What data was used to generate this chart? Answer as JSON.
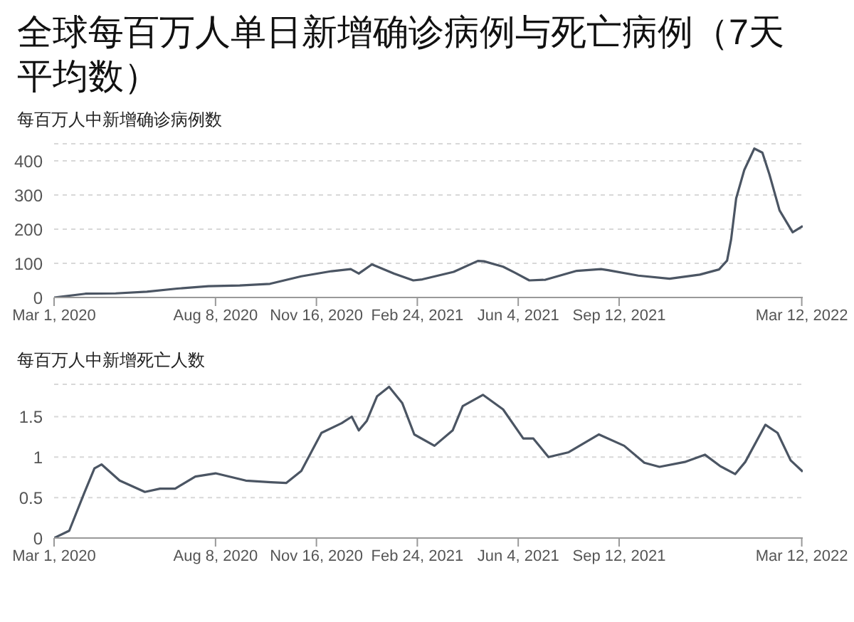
{
  "chart_data": [
    {
      "type": "line",
      "title": "全球每百万人单日新增确诊病例与死亡病例（7天平均数）",
      "ylabel": "每百万人中新增确诊病例数",
      "color": "#4b5563",
      "grid": "y",
      "marker": "none",
      "xlim": [
        "2020-03-01",
        "2022-03-13"
      ],
      "xticks": [
        {
          "value": "2020-03-01",
          "label": "Mar 1, 2020"
        },
        {
          "value": "2020-08-08",
          "label": "Aug 8, 2020"
        },
        {
          "value": "2020-11-16",
          "label": "Nov 16, 2020"
        },
        {
          "value": "2021-02-24",
          "label": "Feb 24, 2021"
        },
        {
          "value": "2021-06-04",
          "label": "Jun 4, 2021"
        },
        {
          "value": "2021-09-12",
          "label": "Sep 12, 2021"
        },
        {
          "value": "2022-03-12",
          "label": "Mar 12, 2022"
        }
      ],
      "ylim": [
        0,
        450
      ],
      "yticks": [
        0,
        100,
        200,
        300,
        400
      ],
      "x": [
        "2020-03-01",
        "2020-04-01",
        "2020-05-01",
        "2020-06-01",
        "2020-07-01",
        "2020-08-01",
        "2020-09-01",
        "2020-10-01",
        "2020-11-01",
        "2020-12-01",
        "2020-12-20",
        "2020-12-28",
        "2021-01-10",
        "2021-02-01",
        "2021-02-20",
        "2021-03-01",
        "2021-04-01",
        "2021-04-25",
        "2021-05-01",
        "2021-05-20",
        "2021-06-01",
        "2021-06-15",
        "2021-07-01",
        "2021-08-01",
        "2021-08-25",
        "2021-09-01",
        "2021-10-01",
        "2021-11-01",
        "2021-12-01",
        "2021-12-20",
        "2021-12-28",
        "2022-01-01",
        "2022-01-06",
        "2022-01-14",
        "2022-01-24",
        "2022-02-01",
        "2022-02-08",
        "2022-02-18",
        "2022-03-03",
        "2022-03-13"
      ],
      "values": [
        0,
        11,
        12,
        17,
        26,
        33,
        35,
        40,
        62,
        77,
        83,
        70,
        97,
        70,
        50,
        53,
        75,
        107,
        106,
        90,
        72,
        50,
        52,
        78,
        83,
        80,
        64,
        55,
        67,
        82,
        108,
        170,
        290,
        373,
        436,
        424,
        360,
        255,
        191,
        209
      ]
    },
    {
      "type": "line",
      "ylabel": "每百万人中新增死亡人数",
      "color": "#4b5563",
      "grid": "y",
      "marker": "none",
      "xlim": [
        "2020-03-01",
        "2022-03-13"
      ],
      "xticks": [
        {
          "value": "2020-03-01",
          "label": "Mar 1, 2020"
        },
        {
          "value": "2020-08-08",
          "label": "Aug 8, 2020"
        },
        {
          "value": "2020-11-16",
          "label": "Nov 16, 2020"
        },
        {
          "value": "2021-02-24",
          "label": "Feb 24, 2021"
        },
        {
          "value": "2021-06-04",
          "label": "Jun 4, 2021"
        },
        {
          "value": "2021-09-12",
          "label": "Sep 12, 2021"
        },
        {
          "value": "2022-03-12",
          "label": "Mar 12, 2022"
        }
      ],
      "ylim": [
        0,
        1.9
      ],
      "yticks": [
        0,
        0.5,
        1,
        1.5
      ],
      "x": [
        "2020-03-01",
        "2020-03-16",
        "2020-03-31",
        "2020-04-10",
        "2020-04-17",
        "2020-05-05",
        "2020-05-30",
        "2020-06-14",
        "2020-06-29",
        "2020-07-19",
        "2020-08-08",
        "2020-09-07",
        "2020-10-02",
        "2020-10-17",
        "2020-11-01",
        "2020-11-21",
        "2020-12-11",
        "2020-12-21",
        "2020-12-28",
        "2021-01-05",
        "2021-01-15",
        "2021-01-27",
        "2021-02-09",
        "2021-02-21",
        "2021-03-13",
        "2021-03-31",
        "2021-04-10",
        "2021-04-30",
        "2021-05-20",
        "2021-06-09",
        "2021-06-19",
        "2021-07-04",
        "2021-07-24",
        "2021-08-23",
        "2021-09-17",
        "2021-10-07",
        "2021-10-22",
        "2021-11-16",
        "2021-12-06",
        "2021-12-21",
        "2022-01-05",
        "2022-01-15",
        "2022-02-04",
        "2022-02-16",
        "2022-03-01",
        "2022-03-13"
      ],
      "values": [
        0,
        0.09,
        0.56,
        0.86,
        0.91,
        0.71,
        0.57,
        0.61,
        0.61,
        0.76,
        0.8,
        0.71,
        0.69,
        0.68,
        0.83,
        1.3,
        1.42,
        1.5,
        1.33,
        1.45,
        1.75,
        1.87,
        1.67,
        1.28,
        1.14,
        1.33,
        1.63,
        1.77,
        1.59,
        1.23,
        1.23,
        1.0,
        1.06,
        1.28,
        1.14,
        0.93,
        0.88,
        0.94,
        1.03,
        0.89,
        0.79,
        0.94,
        1.4,
        1.3,
        0.96,
        0.82
      ]
    }
  ]
}
